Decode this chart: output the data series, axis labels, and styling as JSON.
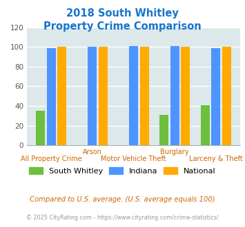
{
  "title_line1": "2018 South Whitley",
  "title_line2": "Property Crime Comparison",
  "title_color": "#1874CD",
  "categories": [
    "All Property Crime",
    "Arson",
    "Motor Vehicle Theft",
    "Burglary",
    "Larceny & Theft"
  ],
  "south_whitley": [
    35,
    0,
    0,
    31,
    41
  ],
  "indiana": [
    99,
    100,
    101,
    101,
    99
  ],
  "national": [
    100,
    100,
    100,
    100,
    100
  ],
  "sw_color": "#6dbf3e",
  "in_color": "#4d94ff",
  "nat_color": "#ffaa00",
  "ylim": [
    0,
    120
  ],
  "yticks": [
    0,
    20,
    40,
    60,
    80,
    100,
    120
  ],
  "bg_color": "#dce8ea",
  "legend_labels": [
    "South Whitley",
    "Indiana",
    "National"
  ],
  "footnote1": "Compared to U.S. average. (U.S. average equals 100)",
  "footnote2": "© 2025 CityRating.com - https://www.cityrating.com/crime-statistics/",
  "footnote1_color": "#cc6600",
  "footnote2_color": "#999999",
  "xlabel_top": [
    "Arson",
    "Burglary"
  ],
  "xlabel_top_pos": [
    1,
    3
  ],
  "xlabel_bottom": [
    "All Property Crime",
    "Motor Vehicle Theft",
    "Larceny & Theft"
  ],
  "xlabel_bottom_pos": [
    0,
    2,
    4
  ]
}
